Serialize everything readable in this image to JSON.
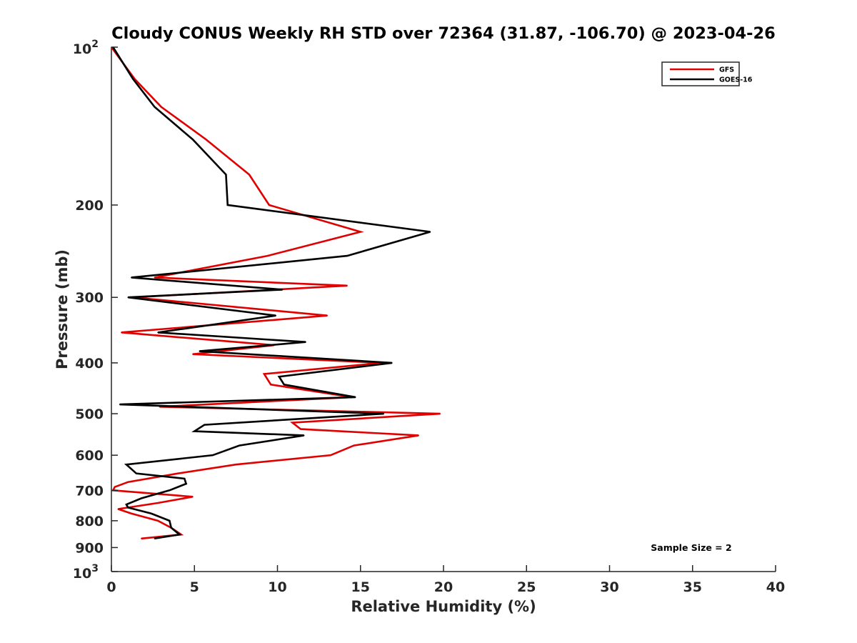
{
  "chart_data": {
    "type": "line",
    "title": "Cloudy CONUS Weekly RH STD over 72364 (31.87, -106.70) @ 2023-04-26",
    "xlabel": "Relative Humidity (%)",
    "ylabel": "Pressure (mb)",
    "xlim": [
      0,
      40
    ],
    "ylim": [
      100,
      1000
    ],
    "yscale": "log",
    "y_reversed": true,
    "x_ticks": [
      0,
      5,
      10,
      15,
      20,
      25,
      30,
      35,
      40
    ],
    "y_ticks": [
      {
        "value": 100,
        "base": "10",
        "exp": "2"
      },
      {
        "value": 200,
        "label": "200"
      },
      {
        "value": 300,
        "label": "300"
      },
      {
        "value": 400,
        "label": "400"
      },
      {
        "value": 500,
        "label": "500"
      },
      {
        "value": 600,
        "label": "600"
      },
      {
        "value": 700,
        "label": "700"
      },
      {
        "value": 800,
        "label": "800"
      },
      {
        "value": 900,
        "label": "900"
      },
      {
        "value": 1000,
        "base": "10",
        "exp": "3"
      }
    ],
    "grid": false,
    "legend_position": "top-right",
    "annotation": "Sample Size = 2",
    "series": [
      {
        "name": "GFS",
        "color": "#e00000",
        "points": [
          [
            0.0,
            100
          ],
          [
            1.4,
            115
          ],
          [
            3.0,
            130
          ],
          [
            5.7,
            150
          ],
          [
            8.3,
            175
          ],
          [
            9.5,
            200
          ],
          [
            15.0,
            225
          ],
          [
            9.4,
            250
          ],
          [
            2.6,
            275
          ],
          [
            14.2,
            285
          ],
          [
            1.3,
            300
          ],
          [
            13.0,
            325
          ],
          [
            0.6,
            350
          ],
          [
            9.8,
            370
          ],
          [
            4.9,
            385
          ],
          [
            16.3,
            400
          ],
          [
            9.2,
            420
          ],
          [
            9.6,
            440
          ],
          [
            14.5,
            465
          ],
          [
            2.9,
            485
          ],
          [
            19.8,
            500
          ],
          [
            10.9,
            520
          ],
          [
            11.4,
            535
          ],
          [
            18.5,
            550
          ],
          [
            14.6,
            575
          ],
          [
            13.2,
            600
          ],
          [
            7.5,
            625
          ],
          [
            4.0,
            650
          ],
          [
            1.0,
            675
          ],
          [
            0.2,
            690
          ],
          [
            0.1,
            700
          ],
          [
            4.9,
            720
          ],
          [
            2.8,
            740
          ],
          [
            0.4,
            760
          ],
          [
            1.2,
            775
          ],
          [
            2.8,
            800
          ],
          [
            3.6,
            825
          ],
          [
            4.2,
            850
          ],
          [
            1.8,
            865
          ]
        ]
      },
      {
        "name": "GOES-16",
        "color": "#000000",
        "points": [
          [
            0.1,
            100
          ],
          [
            1.3,
            115
          ],
          [
            2.6,
            130
          ],
          [
            4.9,
            150
          ],
          [
            6.9,
            175
          ],
          [
            7.0,
            200
          ],
          [
            19.2,
            225
          ],
          [
            14.2,
            250
          ],
          [
            1.2,
            275
          ],
          [
            10.3,
            290
          ],
          [
            1.0,
            300
          ],
          [
            9.9,
            325
          ],
          [
            2.8,
            350
          ],
          [
            11.7,
            365
          ],
          [
            5.3,
            380
          ],
          [
            16.9,
            400
          ],
          [
            10.1,
            425
          ],
          [
            10.4,
            440
          ],
          [
            14.7,
            465
          ],
          [
            0.5,
            480
          ],
          [
            16.4,
            500
          ],
          [
            5.6,
            525
          ],
          [
            5.0,
            540
          ],
          [
            11.6,
            550
          ],
          [
            7.7,
            575
          ],
          [
            6.1,
            600
          ],
          [
            0.9,
            625
          ],
          [
            1.5,
            650
          ],
          [
            4.4,
            665
          ],
          [
            4.5,
            680
          ],
          [
            3.5,
            700
          ],
          [
            1.8,
            725
          ],
          [
            0.9,
            745
          ],
          [
            1.0,
            755
          ],
          [
            2.4,
            775
          ],
          [
            3.5,
            800
          ],
          [
            3.6,
            825
          ],
          [
            4.1,
            850
          ],
          [
            2.6,
            865
          ]
        ]
      }
    ]
  }
}
